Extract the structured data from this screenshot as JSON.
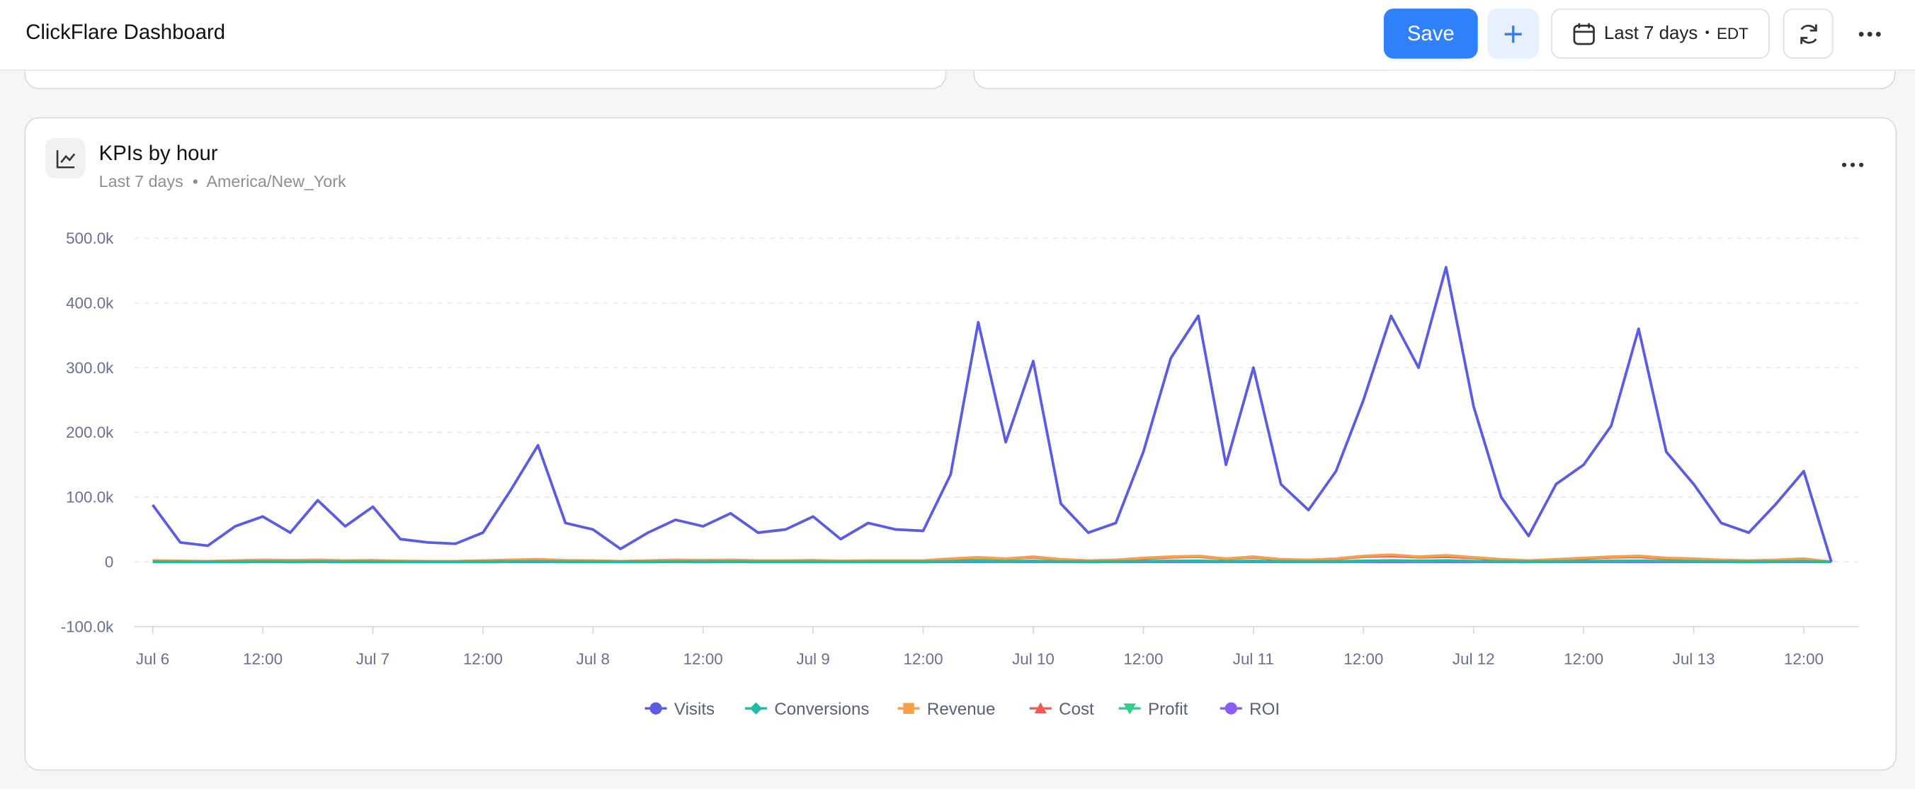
{
  "header": {
    "title": "ClickFlare Dashboard",
    "save": "Save",
    "date_range": "Last 7 days",
    "timezone": "EDT"
  },
  "card": {
    "title": "KPIs by hour",
    "range": "Last 7 days",
    "timezone": "America/New_York"
  },
  "chart_data": {
    "type": "line",
    "x": [
      0,
      3,
      6,
      9,
      12,
      15,
      18,
      21,
      24,
      27,
      30,
      33,
      36,
      39,
      42,
      45,
      48,
      51,
      54,
      57,
      60,
      63,
      66,
      69,
      72,
      75,
      78,
      81,
      84,
      87,
      90,
      93,
      96,
      99,
      102,
      105,
      108,
      111,
      114,
      117,
      120,
      123,
      126,
      129,
      132,
      135,
      138,
      141,
      144,
      147,
      150,
      153,
      156,
      159,
      162,
      165,
      168,
      171,
      174,
      177,
      180,
      183
    ],
    "xlim": [
      -2,
      186
    ],
    "xticks": [
      {
        "value": 0,
        "label": "Jul 6"
      },
      {
        "value": 12,
        "label": "12:00"
      },
      {
        "value": 24,
        "label": "Jul 7"
      },
      {
        "value": 36,
        "label": "12:00"
      },
      {
        "value": 48,
        "label": "Jul 8"
      },
      {
        "value": 60,
        "label": "12:00"
      },
      {
        "value": 72,
        "label": "Jul 9"
      },
      {
        "value": 84,
        "label": "12:00"
      },
      {
        "value": 96,
        "label": "Jul 10"
      },
      {
        "value": 108,
        "label": "12:00"
      },
      {
        "value": 120,
        "label": "Jul 11"
      },
      {
        "value": 132,
        "label": "12:00"
      },
      {
        "value": 144,
        "label": "Jul 12"
      },
      {
        "value": 156,
        "label": "12:00"
      },
      {
        "value": 168,
        "label": "Jul 13"
      },
      {
        "value": 180,
        "label": "12:00"
      }
    ],
    "ylim": [
      -100000,
      500000
    ],
    "yticks": [
      {
        "value": -100000,
        "label": "-100.0k"
      },
      0,
      {
        "value": 100000,
        "label": "100.0k"
      },
      {
        "value": 200000,
        "label": "200.0k"
      },
      {
        "value": 300000,
        "label": "300.0k"
      },
      {
        "value": 400000,
        "label": "400.0k"
      },
      {
        "value": 500000,
        "label": "500.0k"
      }
    ],
    "grid": true,
    "series": [
      {
        "name": "Visits",
        "color": "#5b5ce2",
        "marker": "circle",
        "values": [
          88000,
          30000,
          25000,
          55000,
          70000,
          45000,
          95000,
          55000,
          85000,
          35000,
          30000,
          28000,
          45000,
          110000,
          180000,
          60000,
          50000,
          20000,
          45000,
          65000,
          55000,
          75000,
          45000,
          50000,
          70000,
          35000,
          60000,
          50000,
          48000,
          135000,
          370000,
          185000,
          310000,
          90000,
          45000,
          60000,
          170000,
          315000,
          380000,
          150000,
          300000,
          120000,
          80000,
          140000,
          250000,
          380000,
          300000,
          455000,
          240000,
          100000,
          40000,
          120000,
          150000,
          210000,
          360000,
          170000,
          120000,
          60000,
          45000,
          90000,
          140000,
          0
        ]
      },
      {
        "name": "Conversions",
        "color": "#1bbfa5",
        "marker": "diamond",
        "values": [
          300,
          200,
          100,
          300,
          500,
          400,
          500,
          300,
          400,
          200,
          100,
          100,
          300,
          500,
          700,
          400,
          300,
          100,
          300,
          500,
          400,
          500,
          300,
          300,
          400,
          200,
          300,
          300,
          300,
          800,
          1500,
          900,
          1300,
          600,
          300,
          500,
          1000,
          1400,
          1600,
          800,
          1400,
          700,
          500,
          800,
          1500,
          2000,
          1500,
          1800,
          1200,
          700,
          300,
          700,
          1000,
          1400,
          1600,
          1000,
          900,
          500,
          300,
          500,
          900,
          0
        ]
      },
      {
        "name": "Revenue",
        "color": "#f5a04a",
        "marker": "square",
        "values": [
          2000,
          1500,
          1000,
          2000,
          3000,
          2500,
          3000,
          2000,
          2500,
          1500,
          1000,
          1000,
          2000,
          3000,
          4000,
          2500,
          2000,
          1000,
          2000,
          3000,
          2500,
          3000,
          2000,
          2000,
          2500,
          1500,
          2000,
          2000,
          2000,
          5000,
          7000,
          5000,
          8000,
          4000,
          2000,
          3000,
          6000,
          8000,
          9000,
          5000,
          8000,
          4000,
          3000,
          5000,
          9000,
          11000,
          8000,
          10000,
          7000,
          4000,
          2000,
          4000,
          6000,
          8000,
          9000,
          6000,
          5000,
          3000,
          2000,
          3000,
          5000,
          0
        ]
      },
      {
        "name": "Cost",
        "color": "#f25a5a",
        "marker": "triangle",
        "values": [
          1500,
          1000,
          800,
          1500,
          2500,
          2000,
          2500,
          1500,
          2000,
          1000,
          800,
          800,
          1500,
          2500,
          3500,
          2000,
          1500,
          800,
          1500,
          2500,
          2000,
          2500,
          1500,
          1500,
          2000,
          1000,
          1500,
          1500,
          1500,
          4000,
          6000,
          4500,
          7000,
          3500,
          1500,
          2500,
          5000,
          7000,
          8000,
          4500,
          7000,
          3500,
          2500,
          4500,
          8000,
          9000,
          7000,
          8000,
          6000,
          3500,
          1500,
          3500,
          5000,
          7000,
          7500,
          5000,
          4000,
          2500,
          1500,
          2500,
          4000,
          0
        ]
      },
      {
        "name": "Profit",
        "color": "#2fcf8f",
        "marker": "triangle-down",
        "values": [
          500,
          500,
          200,
          500,
          500,
          500,
          500,
          500,
          500,
          500,
          200,
          200,
          500,
          500,
          500,
          500,
          500,
          200,
          500,
          500,
          500,
          500,
          500,
          500,
          500,
          500,
          500,
          500,
          500,
          1000,
          1000,
          500,
          1000,
          500,
          500,
          500,
          1000,
          1000,
          1000,
          500,
          1000,
          500,
          500,
          500,
          1000,
          2000,
          1000,
          2000,
          1000,
          500,
          500,
          500,
          1000,
          1000,
          1500,
          1000,
          1000,
          500,
          500,
          500,
          1000,
          0
        ]
      },
      {
        "name": "ROI",
        "color": "#8b5cf6",
        "marker": "circle",
        "values": [
          0,
          0,
          0,
          0,
          0,
          0,
          0,
          0,
          0,
          0,
          0,
          0,
          0,
          0,
          0,
          0,
          0,
          0,
          0,
          0,
          0,
          0,
          0,
          0,
          0,
          0,
          0,
          0,
          0,
          0,
          0,
          0,
          0,
          0,
          0,
          0,
          0,
          0,
          0,
          0,
          0,
          0,
          0,
          0,
          0,
          0,
          0,
          0,
          0,
          0,
          0,
          0,
          0,
          0,
          0,
          0,
          0,
          0,
          0,
          0,
          0,
          0
        ]
      }
    ]
  }
}
